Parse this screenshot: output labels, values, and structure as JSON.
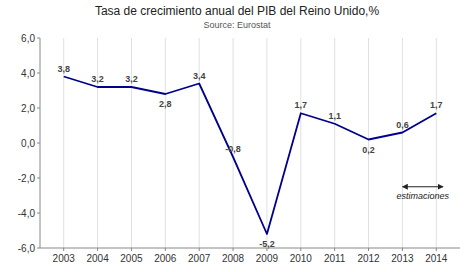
{
  "chart_data": {
    "type": "line",
    "title": "Tasa de crecimiento anual del PIB del Reino Unido,%",
    "subtitle": "Source: Eurostat",
    "x": [
      2003,
      2004,
      2005,
      2006,
      2007,
      2008,
      2009,
      2010,
      2011,
      2012,
      2013,
      2014
    ],
    "values": [
      3.8,
      3.2,
      3.2,
      2.8,
      3.4,
      -0.8,
      -5.2,
      1.7,
      1.1,
      0.2,
      0.6,
      1.7
    ],
    "value_labels": [
      "3,8",
      "3,2",
      "3,2",
      "2,8",
      "3,4",
      "-0,8",
      "-5,2",
      "1,7",
      "1,1",
      "0,2",
      "0,6",
      "1,7"
    ],
    "data_labels": true,
    "color": "#00008B",
    "xlim": [
      2002.3,
      2014.7
    ],
    "xticks": [
      2003,
      2004,
      2005,
      2006,
      2007,
      2008,
      2009,
      2010,
      2011,
      2012,
      2013,
      2014
    ],
    "ylim": [
      -6.0,
      6.0
    ],
    "yticks": [
      {
        "value": -6.0,
        "label": "-6,0"
      },
      {
        "value": -4.0,
        "label": "-4,0"
      },
      {
        "value": -2.0,
        "label": "-2,0"
      },
      {
        "value": 0.0,
        "label": "0,0"
      },
      {
        "value": 2.0,
        "label": "2,0"
      },
      {
        "value": 4.0,
        "label": "4,0"
      },
      {
        "value": 6.0,
        "label": "6,0"
      }
    ],
    "grid": true,
    "annotations": [
      {
        "text": "estimaciones",
        "x_start": 2013.0,
        "x_end": 2014.2,
        "y": -2.5
      }
    ]
  }
}
